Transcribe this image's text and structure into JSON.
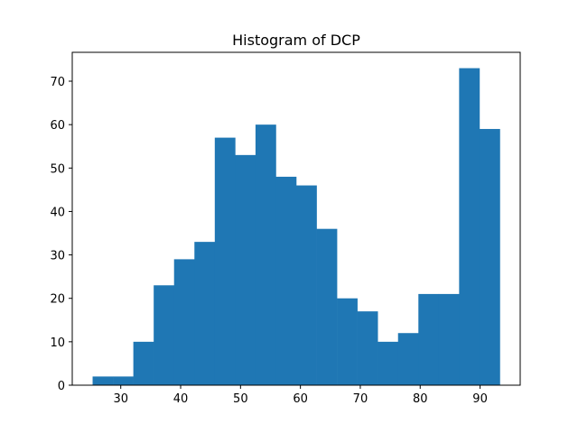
{
  "chart_data": {
    "type": "bar",
    "title": "Histogram of DCP",
    "xlabel": "",
    "ylabel": "",
    "bar_color": "#1f77b4",
    "bins": [
      {
        "x0": 25.3,
        "x1": 28.7,
        "count": 2
      },
      {
        "x0": 28.7,
        "x1": 32.1,
        "count": 2
      },
      {
        "x0": 32.1,
        "x1": 35.5,
        "count": 10
      },
      {
        "x0": 35.5,
        "x1": 38.9,
        "count": 23
      },
      {
        "x0": 38.9,
        "x1": 42.3,
        "count": 29
      },
      {
        "x0": 42.3,
        "x1": 45.7,
        "count": 33
      },
      {
        "x0": 45.7,
        "x1": 49.1,
        "count": 57
      },
      {
        "x0": 49.1,
        "x1": 52.5,
        "count": 53
      },
      {
        "x0": 52.5,
        "x1": 55.9,
        "count": 60
      },
      {
        "x0": 55.9,
        "x1": 59.3,
        "count": 48
      },
      {
        "x0": 59.3,
        "x1": 62.7,
        "count": 46
      },
      {
        "x0": 62.7,
        "x1": 66.1,
        "count": 36
      },
      {
        "x0": 66.1,
        "x1": 69.5,
        "count": 20
      },
      {
        "x0": 69.5,
        "x1": 72.9,
        "count": 17
      },
      {
        "x0": 72.9,
        "x1": 76.3,
        "count": 10
      },
      {
        "x0": 76.3,
        "x1": 79.7,
        "count": 12
      },
      {
        "x0": 79.7,
        "x1": 83.1,
        "count": 21
      },
      {
        "x0": 83.1,
        "x1": 86.5,
        "count": 21
      },
      {
        "x0": 86.5,
        "x1": 89.9,
        "count": 73
      },
      {
        "x0": 89.9,
        "x1": 93.3,
        "count": 59
      }
    ],
    "xlim": [
      21.9,
      96.7
    ],
    "ylim": [
      0,
      76.65
    ],
    "xticks": [
      30,
      40,
      50,
      60,
      70,
      80,
      90
    ],
    "yticks": [
      0,
      10,
      20,
      30,
      40,
      50,
      60,
      70
    ],
    "grid": false
  }
}
